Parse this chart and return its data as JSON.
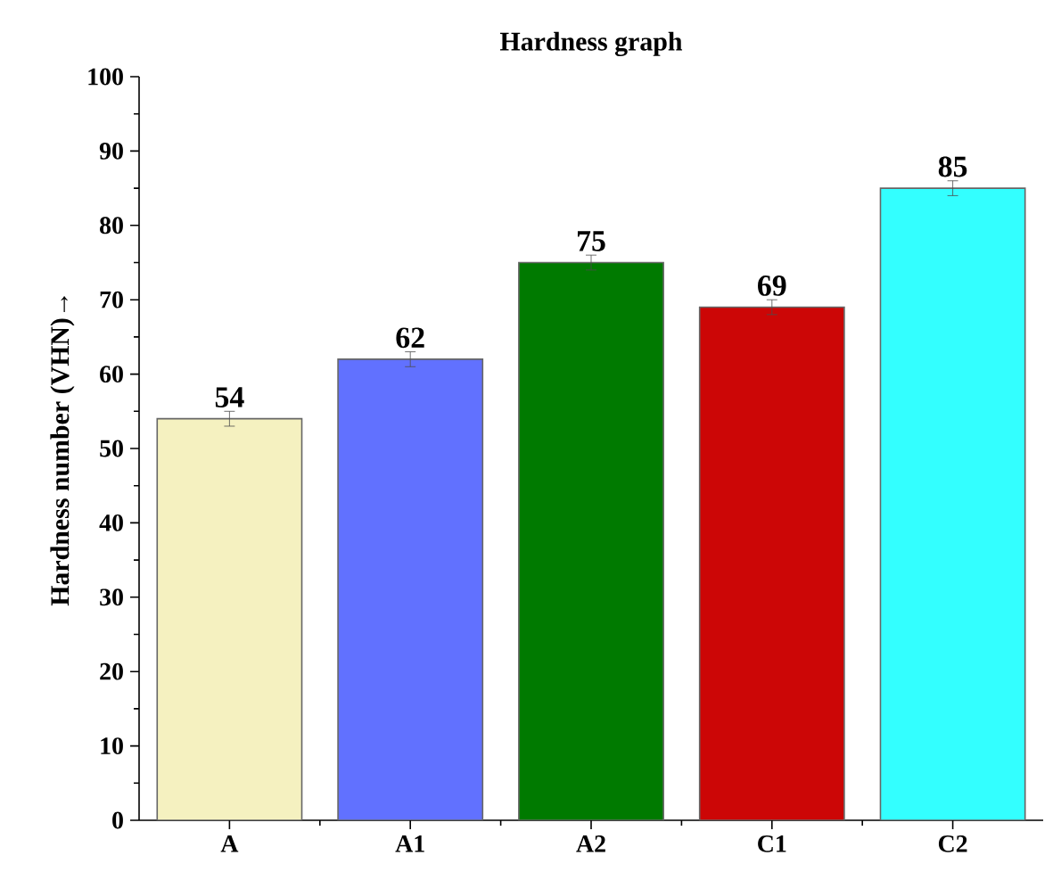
{
  "chart_data": {
    "type": "bar",
    "title": "Hardness graph",
    "ylabel": "Hardness number (VHN)→",
    "categories": [
      "A",
      "A1",
      "A2",
      "C1",
      "C2"
    ],
    "values": [
      54,
      62,
      75,
      69,
      85
    ],
    "errors": [
      1,
      1,
      1,
      1,
      1
    ],
    "colors": [
      "#f5f1c0",
      "#6171ff",
      "#007a00",
      "#cc0606",
      "#33ffff"
    ],
    "ylim": [
      0,
      100
    ],
    "yticks": [
      0,
      10,
      20,
      30,
      40,
      50,
      60,
      70,
      80,
      90,
      100
    ],
    "data_labels": true
  }
}
